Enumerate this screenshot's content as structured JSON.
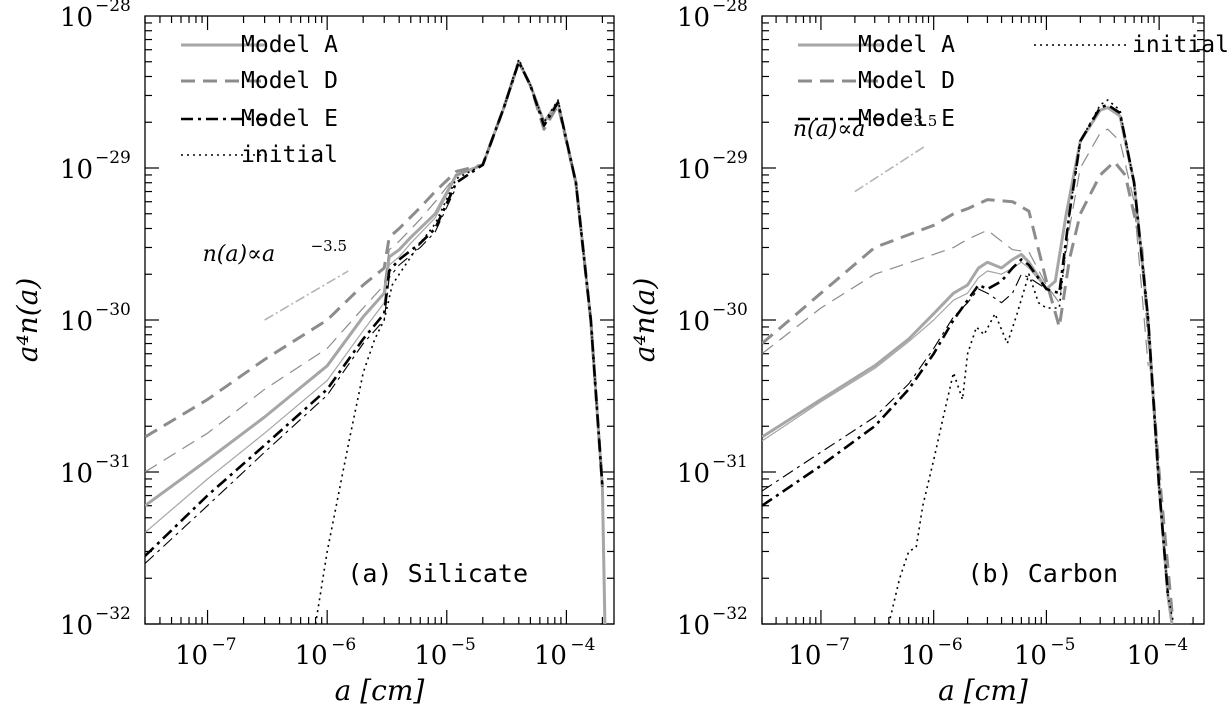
{
  "chart_data": [
    {
      "type": "line",
      "panel_label": "(a) Silicate",
      "xlabel": "a [cm]",
      "ylabel": "a⁴n(a)",
      "xscale": "log",
      "yscale": "log",
      "xlim": [
        3e-08,
        0.00025
      ],
      "ylim": [
        1e-32,
        1e-28
      ],
      "x_ticks": [
        {
          "base": "10",
          "exp": "−7",
          "value": 1e-07
        },
        {
          "base": "10",
          "exp": "−6",
          "value": 1e-06
        },
        {
          "base": "10",
          "exp": "−5",
          "value": 1e-05
        },
        {
          "base": "10",
          "exp": "−4",
          "value": 0.0001
        }
      ],
      "y_ticks": [
        {
          "base": "10",
          "exp": "−28",
          "value": 1e-28
        },
        {
          "base": "10",
          "exp": "−29",
          "value": 1e-29
        },
        {
          "base": "10",
          "exp": "−30",
          "value": 1e-30
        },
        {
          "base": "10",
          "exp": "−31",
          "value": 1e-31
        },
        {
          "base": "10",
          "exp": "−32",
          "value": 1e-32
        }
      ],
      "legend": {
        "placement": "top-left",
        "entries": [
          "Model A",
          "Model D",
          "Model E",
          "initial"
        ]
      },
      "annotation": {
        "main": "n(a)∝a",
        "exp": "−3.5",
        "line": [
          [
            3e-07,
            1e-30
          ],
          [
            1.5e-06,
            2.1e-30
          ]
        ]
      },
      "series": [
        {
          "name": "Model A",
          "style": "solid",
          "color": "#a6a6a6",
          "width": 3,
          "x": [
            3e-08,
            1e-07,
            3e-07,
            1e-06,
            2e-06,
            3e-06,
            3.3e-06,
            4e-06,
            5e-06,
            8e-06,
            1.2e-05,
            2e-05,
            3e-05,
            4e-05,
            5e-05,
            6.5e-05,
            8.5e-05,
            0.00012,
            0.00016,
            0.0002,
            0.00021
          ],
          "y": [
            6e-32,
            1.2e-31,
            2.3e-31,
            5e-31,
            1.05e-30,
            1.5e-30,
            2.6e-30,
            2.9e-30,
            3.5e-30,
            5e-30,
            9e-30,
            1.05e-29,
            2.5e-29,
            5e-29,
            3.5e-29,
            2e-29,
            2.7e-29,
            8e-30,
            1e-30,
            8e-32,
            1e-32
          ]
        },
        {
          "name": "Model A (thin)",
          "style": "solid",
          "color": "#a6a6a6",
          "width": 1.2,
          "x": [
            3e-08,
            1e-07,
            3e-07,
            1e-06,
            2e-06,
            3e-06,
            3.3e-06,
            4e-06,
            5e-06,
            8e-06,
            1.2e-05,
            2e-05,
            3e-05,
            4e-05
          ],
          "y": [
            4e-32,
            9e-32,
            1.8e-31,
            4e-31,
            8.5e-31,
            1.3e-30,
            2.3e-30,
            2.6e-30,
            3.2e-30,
            4.7e-30,
            8.8e-30,
            1.05e-29,
            2.5e-29,
            5e-29
          ]
        },
        {
          "name": "Model D",
          "style": "dashed",
          "color": "#8c8c8c",
          "width": 3,
          "x": [
            3e-08,
            1e-07,
            3e-07,
            1e-06,
            2e-06,
            3e-06,
            3.3e-06,
            4e-06,
            6e-06,
            8e-06,
            1.2e-05,
            2e-05,
            3e-05,
            4e-05,
            5e-05,
            6.5e-05,
            8.5e-05,
            0.00012,
            0.00016,
            0.0002
          ],
          "y": [
            1.7e-31,
            3e-31,
            5.5e-31,
            1e-30,
            1.7e-30,
            2.2e-30,
            3.5e-30,
            4e-30,
            5.5e-30,
            7e-30,
            9.5e-30,
            1.05e-29,
            2.5e-29,
            5e-29,
            3.5e-29,
            1.8e-29,
            2.6e-29,
            8e-30,
            1e-30,
            8e-32
          ]
        },
        {
          "name": "Model D (thin)",
          "style": "dashed",
          "color": "#8c8c8c",
          "width": 1.2,
          "x": [
            3e-08,
            1e-07,
            3e-07,
            1e-06,
            2e-06,
            3e-06,
            3.3e-06,
            4e-06,
            6e-06,
            8e-06,
            1.2e-05,
            2e-05
          ],
          "y": [
            1e-31,
            1.8e-31,
            3.5e-31,
            6.5e-31,
            1.2e-30,
            1.7e-30,
            2.9e-30,
            3.3e-30,
            4.6e-30,
            6e-30,
            9e-30,
            1.05e-29
          ]
        },
        {
          "name": "Model E",
          "style": "dashdot",
          "color": "#000000",
          "width": 2.6,
          "x": [
            3e-08,
            1e-07,
            3e-07,
            1e-06,
            2e-06,
            3e-06,
            3.3e-06,
            4e-06,
            6e-06,
            8e-06,
            1.2e-05,
            2e-05,
            3e-05,
            4e-05,
            5e-05,
            6.5e-05,
            8.5e-05,
            0.00012,
            0.00016,
            0.0002
          ],
          "y": [
            2.8e-32,
            7e-32,
            1.5e-31,
            3.5e-31,
            7.5e-31,
            1.1e-30,
            2.1e-30,
            2.5e-30,
            3.2e-30,
            4e-30,
            8e-30,
            1.05e-29,
            2.5e-29,
            5e-29,
            3.5e-29,
            1.9e-29,
            2.7e-29,
            8e-30,
            1e-30,
            8e-32
          ]
        },
        {
          "name": "Model E (thin)",
          "style": "dashdot",
          "color": "#000000",
          "width": 1.1,
          "x": [
            3e-08,
            1e-07,
            3e-07,
            1e-06,
            2e-06,
            3e-06,
            3.3e-06,
            4e-06,
            6e-06,
            8e-06,
            1.2e-05
          ],
          "y": [
            2.5e-32,
            6e-32,
            1.35e-31,
            3.2e-31,
            7e-31,
            1e-30,
            1.9e-30,
            2.3e-30,
            3e-30,
            3.8e-30,
            7.5e-30
          ]
        },
        {
          "name": "initial",
          "style": "dotted",
          "color": "#000000",
          "width": 1.6,
          "x": [
            8e-07,
            1e-06,
            1.5e-06,
            2e-06,
            2.5e-06,
            3e-06,
            3.5e-06,
            4e-06,
            5e-06,
            6e-06,
            8e-06,
            1.2e-05,
            2e-05,
            3e-05,
            4e-05,
            5e-05,
            6.5e-05,
            8.5e-05,
            0.00012,
            0.00016,
            0.0002
          ],
          "y": [
            1e-32,
            3e-32,
            1.5e-31,
            4.5e-31,
            7.5e-31,
            1e-30,
            1.7e-30,
            2e-30,
            2.6e-30,
            3.2e-30,
            4.3e-30,
            8.5e-30,
            1.05e-29,
            2.5e-29,
            5.2e-29,
            3.5e-29,
            2e-29,
            2.8e-29,
            8e-30,
            1e-30,
            8e-32
          ]
        }
      ]
    },
    {
      "type": "line",
      "panel_label": "(b) Carbon",
      "xlabel": "a [cm]",
      "ylabel": "a⁴n(a)",
      "xscale": "log",
      "yscale": "log",
      "xlim": [
        3e-08,
        0.00025
      ],
      "ylim": [
        1e-32,
        1e-28
      ],
      "x_ticks": [
        {
          "base": "10",
          "exp": "−7",
          "value": 1e-07
        },
        {
          "base": "10",
          "exp": "−6",
          "value": 1e-06
        },
        {
          "base": "10",
          "exp": "−5",
          "value": 1e-05
        },
        {
          "base": "10",
          "exp": "−4",
          "value": 0.0001
        }
      ],
      "y_ticks": [
        {
          "base": "10",
          "exp": "−28",
          "value": 1e-28
        },
        {
          "base": "10",
          "exp": "−29",
          "value": 1e-29
        },
        {
          "base": "10",
          "exp": "−30",
          "value": 1e-30
        },
        {
          "base": "10",
          "exp": "−31",
          "value": 1e-31
        },
        {
          "base": "10",
          "exp": "−32",
          "value": 1e-32
        }
      ],
      "legend": {
        "placement": "top-left",
        "entries": [
          "Model A",
          "Model D",
          "Model E",
          "initial"
        ]
      },
      "annotation": {
        "main": "n(a)∝a",
        "exp": "−3.5",
        "line": [
          [
            2e-07,
            7e-30
          ],
          [
            8.5e-07,
            1.4e-29
          ]
        ]
      },
      "series": [
        {
          "name": "Model A",
          "style": "solid",
          "color": "#a6a6a6",
          "width": 3,
          "x": [
            3e-08,
            1e-07,
            3e-07,
            6e-07,
            1e-06,
            1.5e-06,
            2e-06,
            2.5e-06,
            3e-06,
            4e-06,
            5e-06,
            6e-06,
            7e-06,
            1e-05,
            1.2e-05,
            1.5e-05,
            2e-05,
            3e-05,
            3.5e-05,
            4.5e-05,
            6e-05,
            8e-05,
            0.0001,
            0.00012,
            0.00013
          ],
          "y": [
            1.7e-31,
            3e-31,
            5e-31,
            7.5e-31,
            1.1e-30,
            1.5e-30,
            1.7e-30,
            2.2e-30,
            2.4e-30,
            2.2e-30,
            2.5e-30,
            2.7e-30,
            2.4e-30,
            1.6e-30,
            1.8e-30,
            5e-30,
            1.5e-29,
            2.4e-29,
            2.5e-29,
            2.2e-29,
            8e-30,
            1e-30,
            8e-32,
            1.5e-32,
            1e-32
          ]
        },
        {
          "name": "Model A (thin)",
          "style": "solid",
          "color": "#a6a6a6",
          "width": 1.2,
          "x": [
            3e-08,
            1e-07,
            3e-07,
            6e-07,
            1e-06,
            1.5e-06,
            2e-06,
            2.5e-06,
            3e-06,
            4e-06,
            5e-06,
            6e-06,
            7e-06,
            1e-05
          ],
          "y": [
            1.6e-31,
            2.9e-31,
            4.8e-31,
            7.2e-31,
            1e-30,
            1.35e-30,
            1.5e-30,
            1.9e-30,
            2.1e-30,
            2e-30,
            2.2e-30,
            2.4e-30,
            2.2e-30,
            1.6e-30
          ]
        },
        {
          "name": "Model D",
          "style": "dashed",
          "color": "#8c8c8c",
          "width": 3,
          "x": [
            3e-08,
            1e-07,
            3e-07,
            1e-06,
            1.5e-06,
            2e-06,
            3e-06,
            5e-06,
            7e-06,
            1e-05,
            1.3e-05,
            1.6e-05,
            2e-05,
            3e-05,
            4e-05,
            5e-05,
            7e-05,
            0.0001,
            0.00013
          ],
          "y": [
            7e-31,
            1.5e-30,
            3e-30,
            4.2e-30,
            5e-30,
            5.4e-30,
            6.2e-30,
            6e-30,
            5.2e-30,
            1.8e-30,
            9e-31,
            2.5e-30,
            5e-30,
            9e-30,
            1.1e-29,
            9e-30,
            3e-30,
            1e-31,
            1.2e-32
          ]
        },
        {
          "name": "Model D (thin)",
          "style": "dashed",
          "color": "#8c8c8c",
          "width": 1.2,
          "x": [
            3e-08,
            1e-07,
            3e-07,
            1e-06,
            1.5e-06,
            2e-06,
            3e-06,
            4e-06,
            5e-06,
            7e-06,
            1e-05,
            1.3e-05,
            1.6e-05,
            2e-05,
            3e-05,
            3.5e-05,
            4.5e-05,
            6e-05,
            8e-05
          ],
          "y": [
            6e-31,
            1.2e-30,
            2e-30,
            2.7e-30,
            3e-30,
            3.4e-30,
            3.9e-30,
            3.3e-30,
            2.9e-30,
            2.8e-30,
            1.7e-30,
            1.3e-30,
            4e-30,
            1e-29,
            1.7e-29,
            1.8e-29,
            1.5e-29,
            6e-30,
            5e-31
          ]
        },
        {
          "name": "Model E",
          "style": "dashdot",
          "color": "#000000",
          "width": 2.6,
          "x": [
            3e-08,
            1e-07,
            3e-07,
            6e-07,
            1e-06,
            1.5e-06,
            2e-06,
            2.5e-06,
            3e-06,
            4e-06,
            5e-06,
            6e-06,
            7e-06,
            1e-05,
            1.3e-05,
            1.6e-05,
            2e-05,
            3e-05,
            3.5e-05,
            4.5e-05,
            6e-05,
            8e-05,
            0.0001,
            0.00012
          ],
          "y": [
            6e-32,
            1.1e-31,
            2e-31,
            3.5e-31,
            6e-31,
            1e-30,
            1.35e-30,
            1.7e-30,
            1.6e-30,
            1.8e-30,
            2.2e-30,
            2.5e-30,
            2.3e-30,
            1.6e-30,
            1.5e-30,
            5e-30,
            1.5e-29,
            2.5e-29,
            2.6e-29,
            2.3e-29,
            8e-30,
            1e-30,
            8e-32,
            1.5e-32
          ]
        },
        {
          "name": "Model E (thin)",
          "style": "dashdot",
          "color": "#000000",
          "width": 1.1,
          "x": [
            3e-08,
            1e-07,
            3e-07,
            6e-07,
            1e-06,
            1.5e-06,
            2e-06,
            2.5e-06,
            3e-06,
            4e-06,
            5e-06,
            6e-06,
            7e-06,
            1e-05
          ],
          "y": [
            7.5e-32,
            1.35e-31,
            2.3e-31,
            3.8e-31,
            6.5e-31,
            1.05e-30,
            1.3e-30,
            1.6e-30,
            1.5e-30,
            1.3e-30,
            1.5e-30,
            2e-30,
            1.9e-30,
            1.6e-30
          ]
        },
        {
          "name": "initial",
          "style": "dotted",
          "color": "#000000",
          "width": 1.6,
          "x": [
            4e-07,
            5e-07,
            6e-07,
            7e-07,
            8e-07,
            1e-06,
            1.2e-06,
            1.5e-06,
            1.8e-06,
            2e-06,
            2.4e-06,
            2.8e-06,
            3.5e-06,
            4.5e-06,
            5.5e-06,
            7e-06,
            8.5e-06,
            1e-05,
            1.3e-05,
            1.6e-05,
            2e-05,
            3e-05,
            3.5e-05,
            4.5e-05,
            6e-05,
            8e-05,
            0.0001,
            0.00012,
            0.000135
          ],
          "y": [
            1e-32,
            2e-32,
            3e-32,
            3.2e-32,
            6e-32,
            1.2e-31,
            2.2e-31,
            4.5e-31,
            3e-31,
            6e-31,
            9e-31,
            8e-31,
            1.1e-30,
            7e-31,
            1.1e-30,
            2e-30,
            1.3e-30,
            1.2e-30,
            1.2e-30,
            5e-30,
            1.5e-29,
            2.6e-29,
            2.8e-29,
            2.4e-29,
            8e-30,
            1e-30,
            8e-32,
            1.5e-32,
            1e-32
          ]
        }
      ]
    }
  ]
}
